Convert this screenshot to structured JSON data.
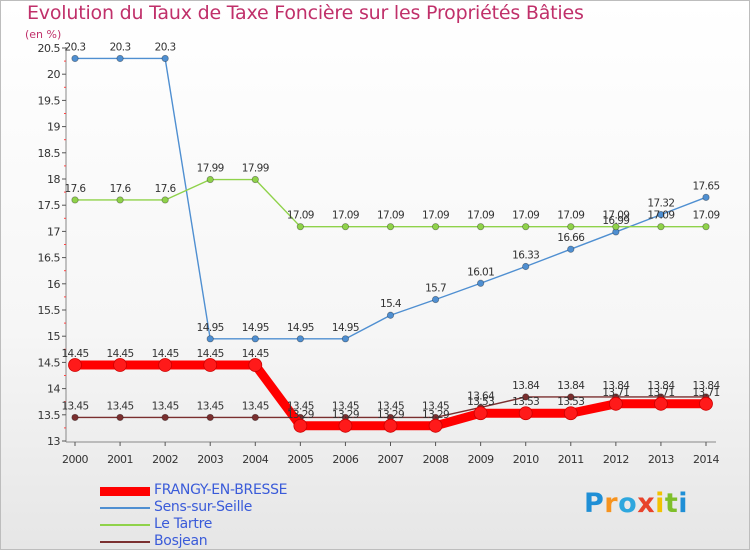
{
  "title": "Evolution du Taux de Taxe Foncière sur les Propriétés Bâties",
  "unit": "(en %)",
  "logo": {
    "letters": [
      "P",
      "r",
      "o",
      "x",
      "i",
      "t",
      "i"
    ],
    "colors": [
      "#1f8fd6",
      "#f7931e",
      "#2ea7de",
      "#e8432b",
      "#f2c200",
      "#7fbf2a",
      "#1f8fd6"
    ]
  },
  "chart_data": {
    "type": "line",
    "x": [
      "2000",
      "2001",
      "2002",
      "2003",
      "2004",
      "2005",
      "2006",
      "2007",
      "2008",
      "2009",
      "2010",
      "2011",
      "2012",
      "2013",
      "2014"
    ],
    "ylim": [
      13,
      20.5
    ],
    "yticks": [
      "13",
      "13.5",
      "14",
      "14.5",
      "15",
      "15.5",
      "16",
      "16.5",
      "17",
      "17.5",
      "18",
      "18.5",
      "19",
      "19.5",
      "20",
      "20.5"
    ],
    "grid": false,
    "legend_position": "bottom-left",
    "series": [
      {
        "name": "FRANGY-EN-BRESSE",
        "color": "#ff0000",
        "values": [
          14.45,
          14.45,
          14.45,
          14.45,
          14.45,
          13.29,
          13.29,
          13.29,
          13.29,
          13.53,
          13.53,
          13.53,
          13.71,
          13.71,
          13.71
        ],
        "labels": [
          "14.45",
          "14.45",
          "14.45",
          "14.45",
          "14.45",
          "13.29",
          "13.29",
          "13.29",
          "13.29",
          "13.53",
          "13.53",
          "13.53",
          "13.71",
          "13.71",
          "13.71"
        ]
      },
      {
        "name": "Sens-sur-Seille",
        "color": "#4f8fd1",
        "values": [
          20.3,
          20.3,
          20.3,
          14.95,
          14.95,
          14.95,
          14.95,
          15.4,
          15.7,
          16.01,
          16.33,
          16.66,
          16.99,
          17.32,
          17.65
        ],
        "labels": [
          "20.3",
          "20.3",
          "20.3",
          "14.95",
          "14.95",
          "14.95",
          "14.95",
          "15.4",
          "15.7",
          "16.01",
          "16.33",
          "16.66",
          "16.99",
          "17.32",
          "17.65"
        ]
      },
      {
        "name": "Le Tartre",
        "color": "#8fd24a",
        "values": [
          17.6,
          17.6,
          17.6,
          17.99,
          17.99,
          17.09,
          17.09,
          17.09,
          17.09,
          17.09,
          17.09,
          17.09,
          17.09,
          17.09,
          17.09
        ],
        "labels": [
          "17.6",
          "17.6",
          "17.6",
          "17.99",
          "17.99",
          "17.09",
          "17.09",
          "17.09",
          "17.09",
          "17.09",
          "17.09",
          "17.09",
          "17.09",
          "17.09",
          "17.09"
        ]
      },
      {
        "name": "Bosjean",
        "color": "#7a2f2f",
        "values": [
          13.45,
          13.45,
          13.45,
          13.45,
          13.45,
          13.45,
          13.45,
          13.45,
          13.45,
          13.64,
          13.84,
          13.84,
          13.84,
          13.84,
          13.84
        ],
        "labels": [
          "13.45",
          "13.45",
          "13.45",
          "13.45",
          "13.45",
          "13.45",
          "13.45",
          "13.45",
          "13.45",
          "13.64",
          "13.84",
          "13.84",
          "13.84",
          "13.84",
          "13.84"
        ]
      }
    ]
  }
}
